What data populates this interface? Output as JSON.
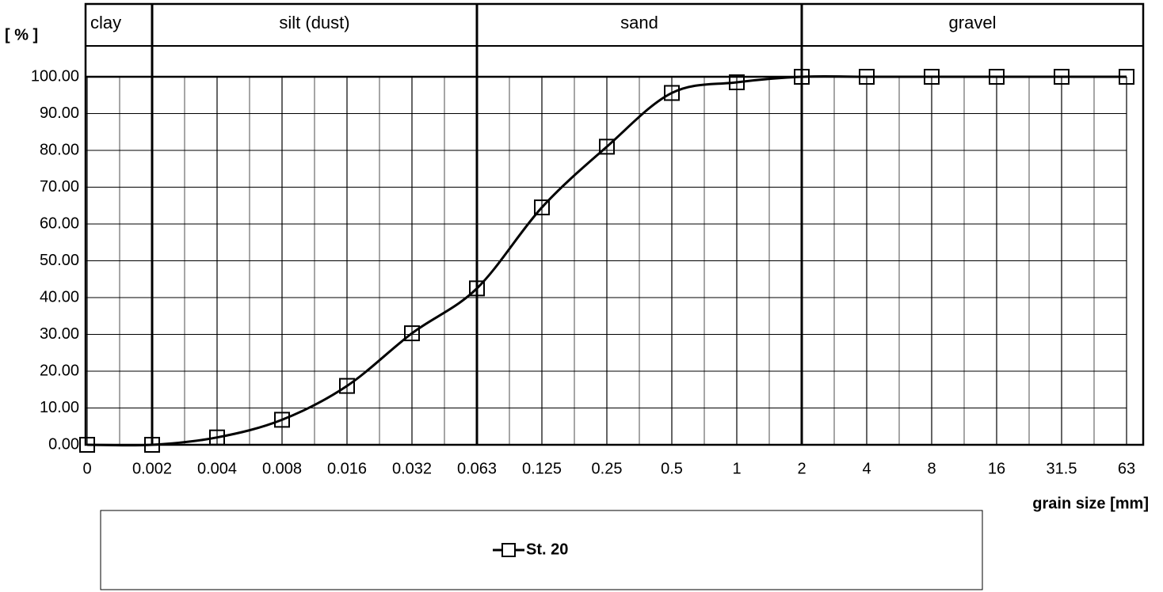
{
  "chart_data": {
    "type": "line",
    "y_label": "[ % ]",
    "x_label": "grain size [mm]",
    "zones": [
      "clay",
      "silt (dust)",
      "sand",
      "gravel"
    ],
    "categories": [
      "0",
      "0.002",
      "0.004",
      "0.008",
      "0.016",
      "0.032",
      "0.063",
      "0.125",
      "0.25",
      "0.5",
      "1",
      "2",
      "4",
      "8",
      "16",
      "31.5",
      "63"
    ],
    "series": [
      {
        "name": "St. 20",
        "color": "#000000",
        "values": [
          0,
          0,
          2,
          6.8,
          16,
          30.3,
          42.5,
          64.5,
          81,
          95.6,
          98.5,
          100,
          100,
          100,
          100,
          100,
          100
        ]
      }
    ],
    "ylim": [
      0,
      100
    ],
    "yticks": [
      {
        "value": 0,
        "label": "0.00"
      },
      {
        "value": 10,
        "label": "10.00"
      },
      {
        "value": 20,
        "label": "20.00"
      },
      {
        "value": 30,
        "label": "30.00"
      },
      {
        "value": 40,
        "label": "40.00"
      },
      {
        "value": 50,
        "label": "50.00"
      },
      {
        "value": 60,
        "label": "60.00"
      },
      {
        "value": 70,
        "label": "70.00"
      },
      {
        "value": 80,
        "label": "80.00"
      },
      {
        "value": 90,
        "label": "90.00"
      },
      {
        "value": 100,
        "label": "100.00"
      }
    ],
    "grid": true
  }
}
